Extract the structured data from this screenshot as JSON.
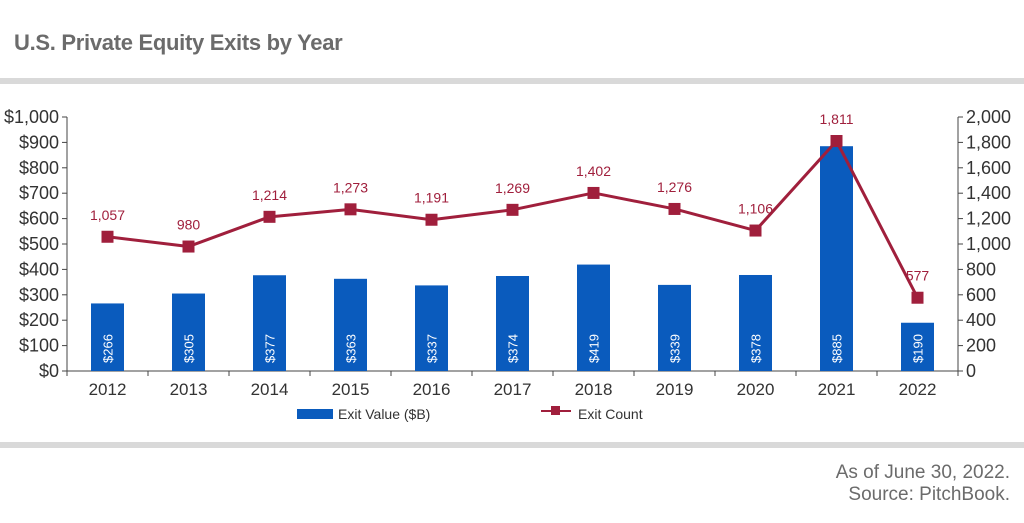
{
  "title": "U.S. Private Equity Exits by Year",
  "footer": {
    "line1": "As of June 30, 2022.",
    "line2": "Source: PitchBook."
  },
  "colors": {
    "bar": "#0a5bbd",
    "line": "#a01f3c",
    "axis_text": "#333333",
    "grid_rule": "#d9d9d9"
  },
  "chart_data": {
    "type": "bar",
    "categories": [
      "2012",
      "2013",
      "2014",
      "2015",
      "2016",
      "2017",
      "2018",
      "2019",
      "2020",
      "2021",
      "2022"
    ],
    "series": [
      {
        "name": "Exit Value ($B)",
        "type": "bar",
        "axis": "left",
        "values": [
          266,
          305,
          377,
          363,
          337,
          374,
          419,
          339,
          378,
          885,
          190
        ],
        "labels": [
          "$266",
          "$305",
          "$377",
          "$363",
          "$337",
          "$374",
          "$419",
          "$339",
          "$378",
          "$885",
          "$190"
        ]
      },
      {
        "name": "Exit Count",
        "type": "line",
        "axis": "right",
        "values": [
          1057,
          980,
          1214,
          1273,
          1191,
          1269,
          1402,
          1276,
          1106,
          1811,
          577
        ],
        "labels": [
          "1,057",
          "980",
          "1,214",
          "1,273",
          "1,191",
          "1,269",
          "1,402",
          "1,276",
          "1,106",
          "1,811",
          "577"
        ]
      }
    ],
    "y_left": {
      "lim": [
        0,
        1000
      ],
      "ticks": [
        0,
        100,
        200,
        300,
        400,
        500,
        600,
        700,
        800,
        900,
        1000
      ],
      "tick_labels": [
        "$0",
        "$100",
        "$200",
        "$300",
        "$400",
        "$500",
        "$600",
        "$700",
        "$800",
        "$900",
        "$1,000"
      ]
    },
    "y_right": {
      "lim": [
        0,
        2000
      ],
      "ticks": [
        0,
        200,
        400,
        600,
        800,
        1000,
        1200,
        1400,
        1600,
        1800,
        2000
      ],
      "tick_labels": [
        "0",
        "200",
        "400",
        "600",
        "800",
        "1,000",
        "1,200",
        "1,400",
        "1,600",
        "1,800",
        "2,000"
      ]
    },
    "grid": false,
    "legend_position": "bottom"
  }
}
